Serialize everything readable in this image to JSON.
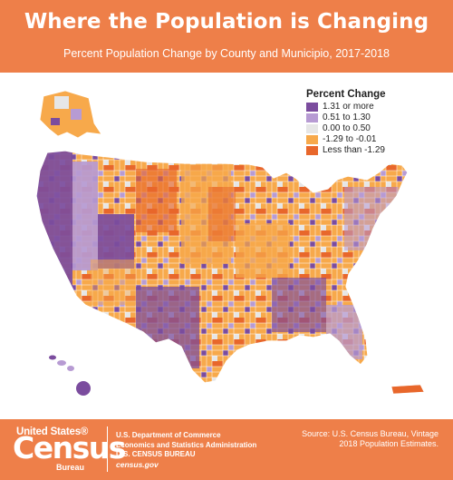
{
  "header": {
    "title": "Where the Population is Changing",
    "subtitle": "Percent Population Change by County and Municipio, 2017-2018"
  },
  "legend": {
    "title": "Percent Change",
    "items": [
      {
        "label": "1.31 or more",
        "color": "#7b4c9e"
      },
      {
        "label": "0.51 to 1.30",
        "color": "#b79bd3"
      },
      {
        "label": "0.00 to 0.50",
        "color": "#e6e6e6"
      },
      {
        "label": "-1.29 to -0.01",
        "color": "#f7a94b"
      },
      {
        "label": "Less than -1.29",
        "color": "#e8672b"
      }
    ]
  },
  "map": {
    "regions": [
      "contiguous-us",
      "alaska",
      "hawaii",
      "puerto-rico"
    ],
    "land_color": "#f7a94b",
    "border_color": "#ffffff"
  },
  "footer": {
    "logo": {
      "top": "United States®",
      "main": "Census",
      "sub": "Bureau"
    },
    "agency_lines": [
      "U.S. Department of Commerce",
      "Economics and Statistics Administration",
      "U.S. CENSUS BUREAU"
    ],
    "website": "census.gov",
    "source_line1": "Source: U.S. Census Bureau, Vintage",
    "source_line2": "2018 Population Estimates."
  }
}
